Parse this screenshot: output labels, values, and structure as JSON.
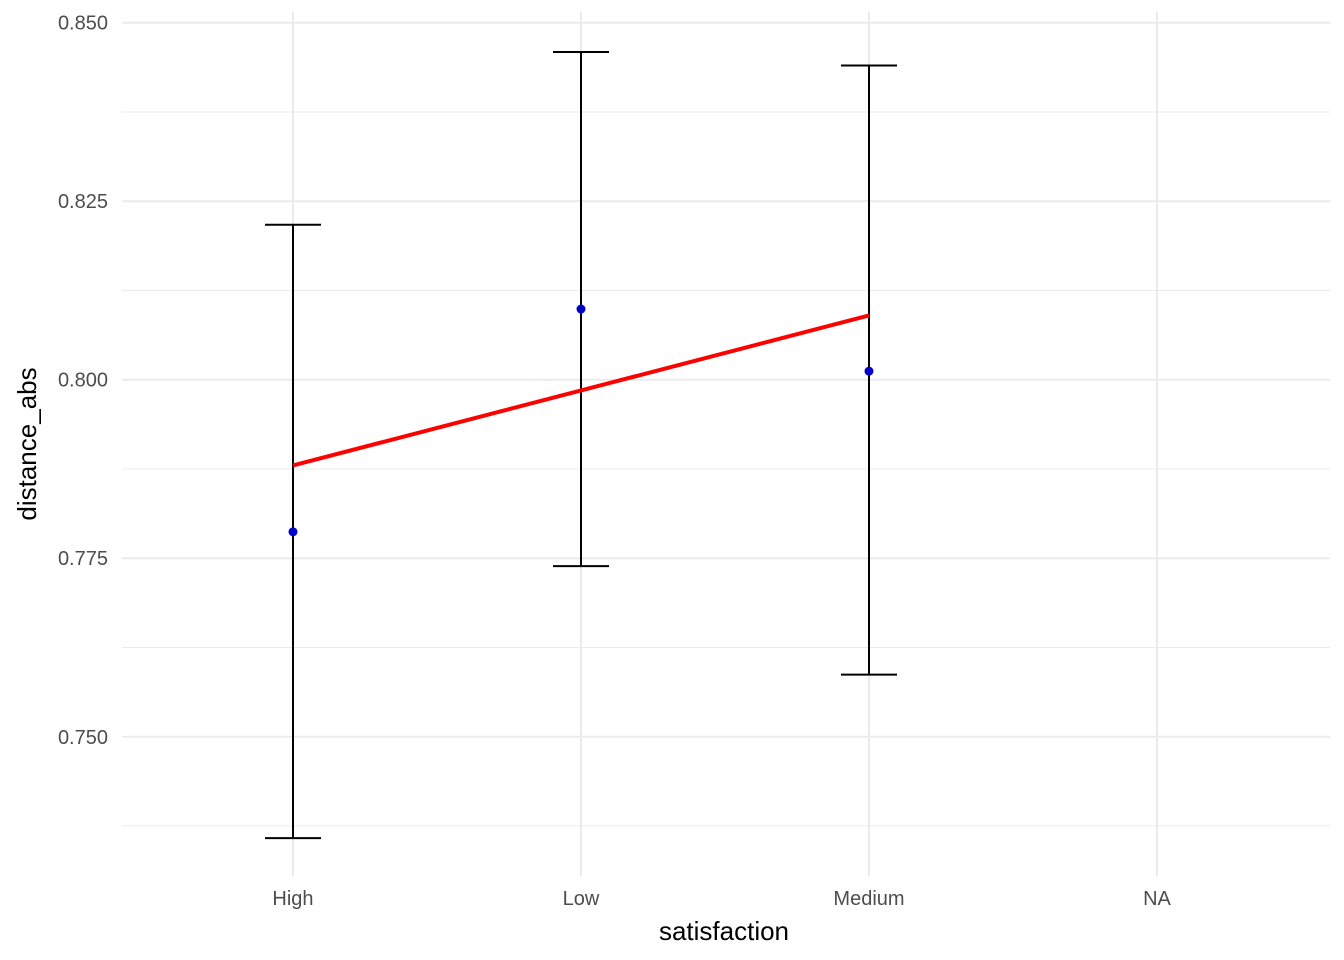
{
  "chart_data": {
    "type": "scatter",
    "title": "",
    "xlabel": "satisfaction",
    "ylabel": "distance_abs",
    "categories": [
      "High",
      "Low",
      "Medium",
      "NA"
    ],
    "yticks": [
      "0.750",
      "0.775",
      "0.800",
      "0.825",
      "0.850"
    ],
    "ylim": [
      0.7305,
      0.8515
    ],
    "grid": true,
    "legend": "none",
    "series": [
      {
        "kind": "point_with_errorbar",
        "color": "#0000CD",
        "points": [
          {
            "x": "High",
            "y": 0.7787,
            "ymin": 0.7358,
            "ymax": 0.8217
          },
          {
            "x": "Low",
            "y": 0.8099,
            "ymin": 0.7739,
            "ymax": 0.8459
          },
          {
            "x": "Medium",
            "y": 0.8012,
            "ymin": 0.7587,
            "ymax": 0.844
          }
        ]
      },
      {
        "kind": "trend_line",
        "color": "#FF0000",
        "points": [
          {
            "x": "High",
            "y": 0.788
          },
          {
            "x": "Medium",
            "y": 0.809
          }
        ]
      }
    ]
  }
}
